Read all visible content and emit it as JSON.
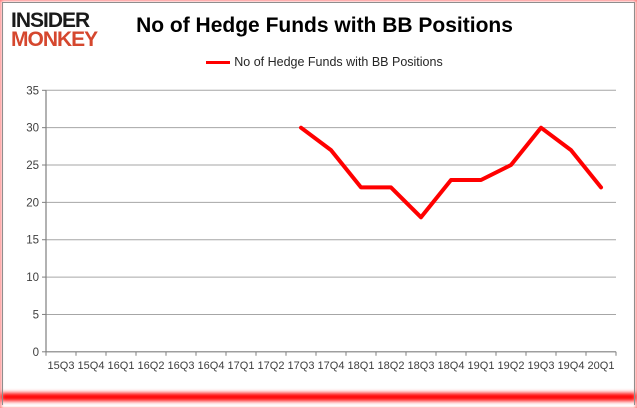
{
  "branding": {
    "logo_line1": "INSIDER",
    "logo_line2": "MONKEY",
    "logo_color_top": "#1a1a1a",
    "logo_color_bottom": "#d5472e"
  },
  "title": "No of Hedge Funds with BB Positions",
  "legend": {
    "label": "No of Hedge Funds with BB Positions",
    "marker_color": "#ff0000"
  },
  "chart_data": {
    "type": "line",
    "title": "No of Hedge Funds with BB Positions",
    "categories": [
      "15Q3",
      "15Q4",
      "16Q1",
      "16Q2",
      "16Q3",
      "16Q4",
      "17Q1",
      "17Q2",
      "17Q3",
      "17Q4",
      "18Q1",
      "18Q2",
      "18Q3",
      "18Q4",
      "19Q1",
      "19Q2",
      "19Q3",
      "19Q4",
      "20Q1"
    ],
    "series": [
      {
        "name": "No of Hedge Funds with BB Positions",
        "color": "#ff0000",
        "values": [
          null,
          null,
          null,
          null,
          null,
          null,
          null,
          null,
          30,
          27,
          22,
          22,
          18,
          23,
          23,
          25,
          30,
          27,
          22
        ]
      }
    ],
    "xlabel": "",
    "ylabel": "",
    "ylim": [
      0,
      35
    ],
    "yticks": [
      0,
      5,
      10,
      15,
      20,
      25,
      30,
      35
    ],
    "grid": true,
    "legend_position": "top"
  },
  "colors": {
    "axis": "#7f7f7f",
    "gridline": "#a6a6a6",
    "tick_label": "#3f3f3f",
    "background": "#ffffff",
    "border_glow": "#ff0000"
  }
}
